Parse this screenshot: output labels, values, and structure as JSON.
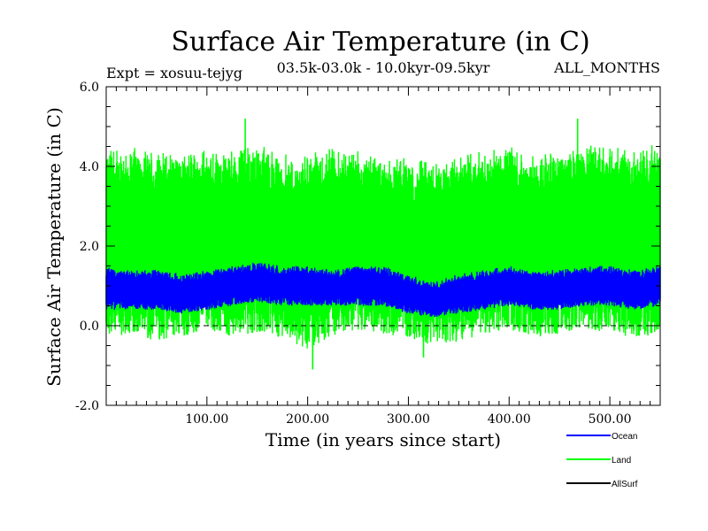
{
  "chart_data": {
    "type": "line",
    "title": "Surface Air Temperature (in C)",
    "subtitle_left": "Expt = xosuu-tejyg",
    "subtitle_center": "03.5k-03.0k - 10.0kyr-09.5kyr",
    "subtitle_right": "ALL_MONTHS",
    "xlabel": "Time (in years since start)",
    "ylabel": "Surface Air Temperature (in C)",
    "xlim": [
      0,
      550
    ],
    "ylim": [
      -2.0,
      6.0
    ],
    "x_ticks": [
      100,
      200,
      300,
      400,
      500
    ],
    "x_tick_labels": [
      "100.00",
      "200.00",
      "300.00",
      "400.00",
      "500.00"
    ],
    "y_ticks": [
      -2.0,
      0.0,
      2.0,
      4.0,
      6.0
    ],
    "y_tick_labels": [
      "-2.0",
      "0.0",
      "2.0",
      "4.0",
      "6.0"
    ],
    "zero_line": 0.0,
    "series": [
      {
        "name": "Land",
        "color": "#00ff00",
        "envelope": {
          "x": [
            0,
            25,
            50,
            75,
            100,
            125,
            150,
            175,
            200,
            225,
            250,
            275,
            300,
            325,
            350,
            375,
            400,
            425,
            450,
            475,
            500,
            525,
            550
          ],
          "upper": [
            4.4,
            4.5,
            4.4,
            4.3,
            4.5,
            4.4,
            4.6,
            4.3,
            4.3,
            4.5,
            4.4,
            4.3,
            4.2,
            4.1,
            4.3,
            4.4,
            4.5,
            4.3,
            4.4,
            4.6,
            4.5,
            4.4,
            4.6
          ],
          "lower": [
            -0.3,
            -0.2,
            -0.4,
            -0.3,
            -0.1,
            -0.3,
            -0.2,
            -0.3,
            -0.6,
            -0.3,
            -0.1,
            -0.2,
            -0.3,
            -0.5,
            -0.4,
            -0.2,
            -0.1,
            -0.3,
            -0.2,
            -0.1,
            -0.2,
            -0.3,
            -0.2
          ],
          "peaks": [
            [
              138,
              5.2
            ],
            [
              468,
              5.2
            ],
            [
              205,
              -1.1
            ],
            [
              315,
              -0.8
            ]
          ]
        }
      },
      {
        "name": "Ocean",
        "color": "#0000ff",
        "envelope": {
          "x": [
            0,
            25,
            50,
            75,
            100,
            125,
            150,
            175,
            200,
            225,
            250,
            275,
            300,
            325,
            350,
            375,
            400,
            425,
            450,
            475,
            500,
            525,
            550
          ],
          "upper": [
            1.5,
            1.4,
            1.4,
            1.3,
            1.4,
            1.5,
            1.6,
            1.5,
            1.5,
            1.4,
            1.5,
            1.5,
            1.3,
            1.1,
            1.3,
            1.4,
            1.5,
            1.4,
            1.4,
            1.5,
            1.5,
            1.4,
            1.5
          ],
          "lower": [
            0.4,
            0.4,
            0.4,
            0.3,
            0.4,
            0.5,
            0.6,
            0.5,
            0.5,
            0.5,
            0.5,
            0.5,
            0.3,
            0.2,
            0.3,
            0.4,
            0.5,
            0.4,
            0.4,
            0.5,
            0.5,
            0.4,
            0.5
          ]
        }
      },
      {
        "name": "AllSurf",
        "color": "#000000",
        "envelope": null
      }
    ],
    "legend": {
      "placement": "bottom-right",
      "items": [
        {
          "name": "Ocean",
          "color": "#0000ff"
        },
        {
          "name": "Land",
          "color": "#00ff00"
        },
        {
          "name": "AllSurf",
          "color": "#000000"
        }
      ]
    }
  }
}
